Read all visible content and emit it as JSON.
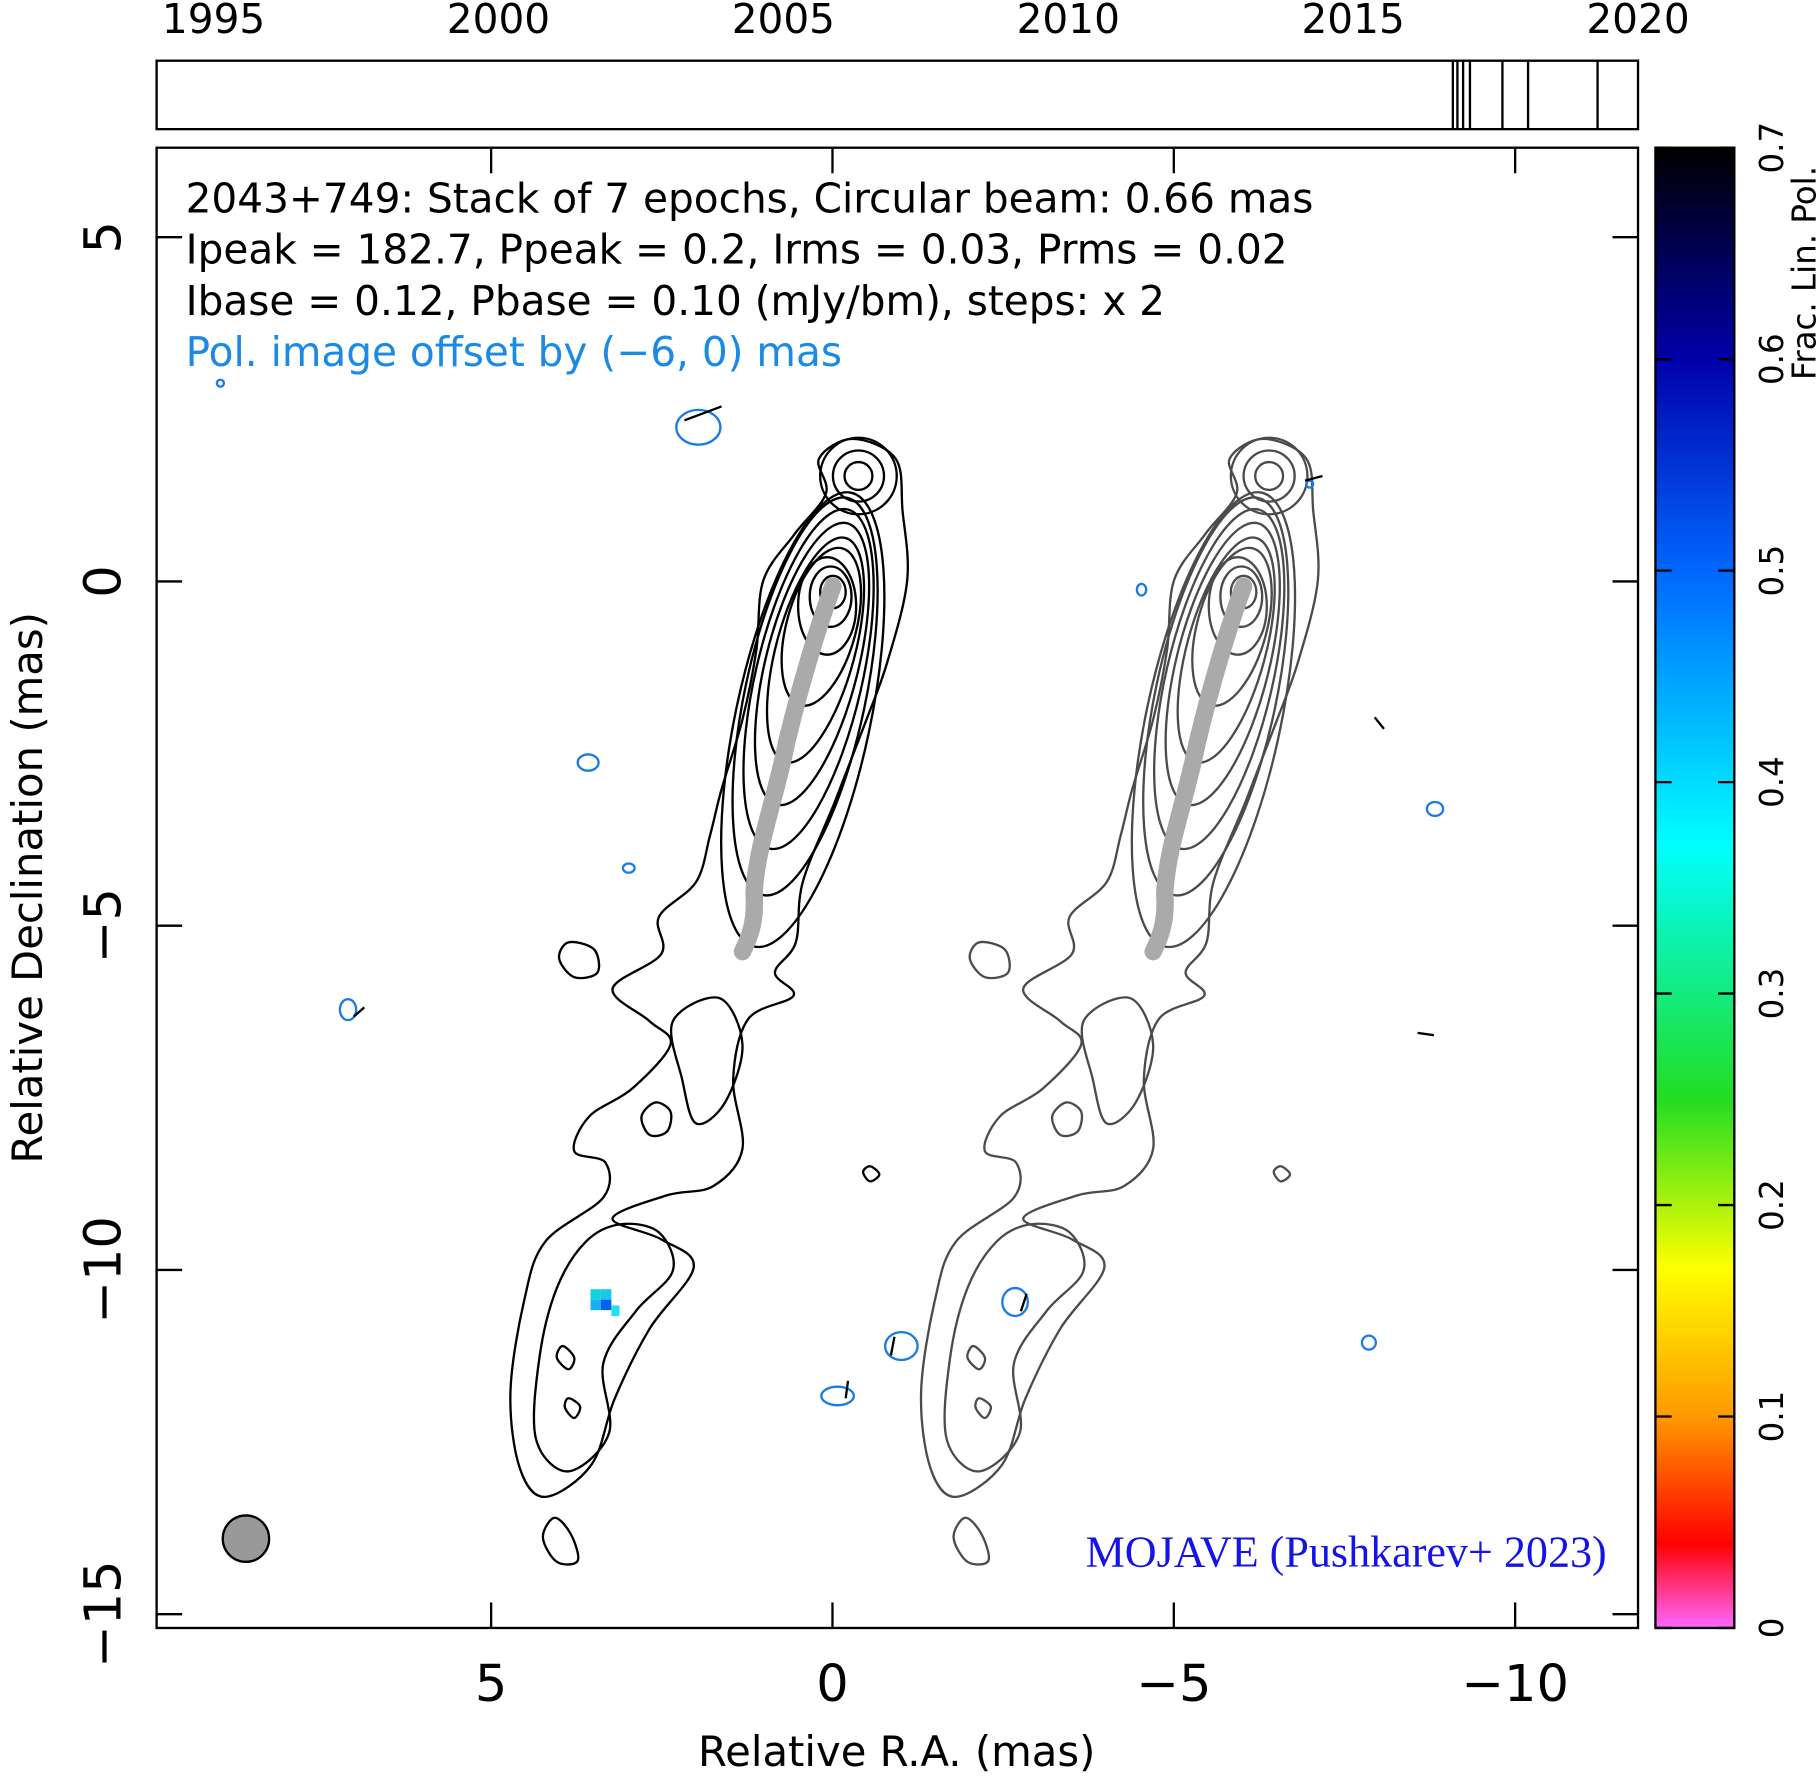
{
  "chart_data": {
    "type": "contour",
    "annotations": [
      "2043+749: Stack of 7 epochs, Circular beam: 0.66 mas",
      "Ipeak = 182.7, Ppeak = 0.2, Irms = 0.03, Prms = 0.02",
      "Ibase = 0.12, Pbase = 0.10 (mJy/bm), steps: x 2",
      "Pol. image offset by (−6, 0) mas"
    ],
    "credit": "MOJAVE (Pushkarev+ 2023)",
    "xlabel": "Relative R.A. (mas)",
    "ylabel": "Relative Declination (mas)",
    "xlim": [
      9.9,
      -11.8
    ],
    "ylim": [
      -15.2,
      6.3
    ],
    "xticks": [
      5,
      0,
      {
        "value": -5,
        "label": "−5"
      },
      {
        "value": -10,
        "label": "−10"
      }
    ],
    "yticks": [
      5,
      0,
      {
        "value": -5,
        "label": "−5"
      },
      {
        "value": -10,
        "label": "−10"
      },
      {
        "value": -15,
        "label": "−15"
      }
    ],
    "timeline": {
      "xlim": [
        1994,
        2020
      ],
      "xticks": [
        1995,
        2000,
        2005,
        2010,
        2015,
        2020
      ],
      "epochs": [
        2016.75,
        2016.83,
        2016.93,
        2017.05,
        2017.62,
        2018.07,
        2019.29
      ]
    },
    "colorbar": {
      "label": "Frac. Lin. Pol.",
      "lim": [
        0,
        0.7
      ],
      "ticks": [
        0,
        0.1,
        0.2,
        0.3,
        0.4,
        0.5,
        0.6,
        0.7
      ],
      "colormap": [
        {
          "value": 0,
          "color": "#ff66ff"
        },
        {
          "value": 0.04,
          "color": "#ff0000"
        },
        {
          "value": 0.1,
          "color": "#ff9900"
        },
        {
          "value": 0.17,
          "color": "#ffff00"
        },
        {
          "value": 0.25,
          "color": "#22dd22"
        },
        {
          "value": 0.37,
          "color": "#00ffff"
        },
        {
          "value": 0.5,
          "color": "#0066ff"
        },
        {
          "value": 0.6,
          "color": "#0000aa"
        },
        {
          "value": 0.7,
          "color": "#000000"
        }
      ]
    }
  }
}
